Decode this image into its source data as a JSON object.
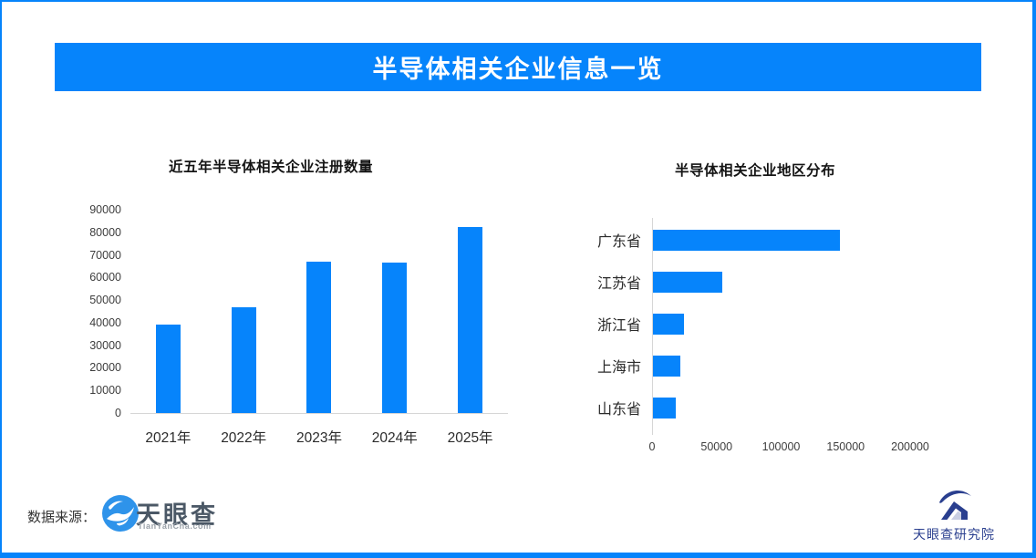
{
  "page": {
    "title": "半导体相关企业信息一览"
  },
  "colors": {
    "accent_blue": "#0684fb",
    "axis_gray": "#d6d6d6",
    "tianyancha_logo_blue": "#2e93ea",
    "institute_navy": "#2a3f8f"
  },
  "chart_data": [
    {
      "type": "bar",
      "title": "近五年半导体相关企业注册数量",
      "categories": [
        "2021年",
        "2022年",
        "2023年",
        "2024年",
        "2025年"
      ],
      "values": [
        39000,
        47000,
        67000,
        66500,
        82500
      ],
      "xlabel": "",
      "ylabel": "",
      "ylim": [
        0,
        90000
      ],
      "yticks": [
        0,
        10000,
        20000,
        30000,
        40000,
        50000,
        60000,
        70000,
        80000,
        90000
      ],
      "grid": false,
      "legend": false,
      "bar_color": "#0684fb"
    },
    {
      "type": "bar",
      "orientation": "horizontal",
      "title": "半导体相关企业地区分布",
      "categories": [
        "广东省",
        "江苏省",
        "浙江省",
        "上海市",
        "山东省"
      ],
      "values": [
        145000,
        54000,
        24000,
        21000,
        18000
      ],
      "xlabel": "",
      "ylabel": "",
      "xlim": [
        0,
        200000
      ],
      "xticks": [
        0,
        50000,
        100000,
        150000,
        200000
      ],
      "grid": false,
      "legend": false,
      "bar_color": "#0684fb"
    }
  ],
  "footer": {
    "source_label": "数据来源：",
    "tianyancha_name": "天眼查",
    "tianyancha_domain": "TianYanCha.com",
    "institute_name": "天眼查研究院"
  }
}
